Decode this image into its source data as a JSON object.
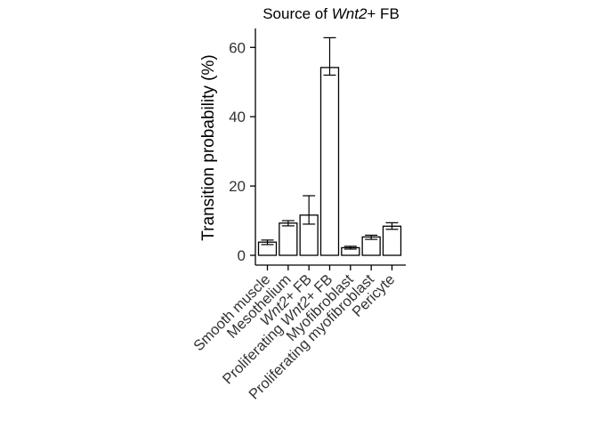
{
  "chart_data": {
    "type": "bar",
    "title": {
      "prefix": "Source of ",
      "italic": "Wnt2",
      "suffix": "+ FB"
    },
    "ylabel": "Transition probability (%)",
    "xlabel": "",
    "categories": [
      {
        "prefix": "Smooth muscle",
        "italic": "",
        "suffix": ""
      },
      {
        "prefix": "Mesothelium",
        "italic": "",
        "suffix": ""
      },
      {
        "prefix": "",
        "italic": "Wnt2",
        "suffix": "+ FB"
      },
      {
        "prefix": "Proliferating ",
        "italic": "Wnt2",
        "suffix": "+ FB"
      },
      {
        "prefix": "Myofibroblast",
        "italic": "",
        "suffix": ""
      },
      {
        "prefix": "Proliferating myofibroblast",
        "italic": "",
        "suffix": ""
      },
      {
        "prefix": "Pericyte",
        "italic": "",
        "suffix": ""
      }
    ],
    "values": [
      3.8,
      9.3,
      11.6,
      54.2,
      2.2,
      5.3,
      8.4
    ],
    "error_low": [
      3.1,
      8.5,
      9.0,
      52.0,
      1.8,
      4.6,
      7.5
    ],
    "error_high": [
      4.4,
      10.0,
      17.2,
      62.8,
      2.6,
      5.8,
      9.4
    ],
    "ylim": [
      -2,
      66
    ],
    "yticks": [
      0,
      20,
      40,
      60
    ],
    "grid": false,
    "legend": "none",
    "colors": {
      "bar_fill": "#ffffff",
      "bar_edge": "#000000",
      "axis": "#000000",
      "tick_text": "#333333"
    }
  }
}
